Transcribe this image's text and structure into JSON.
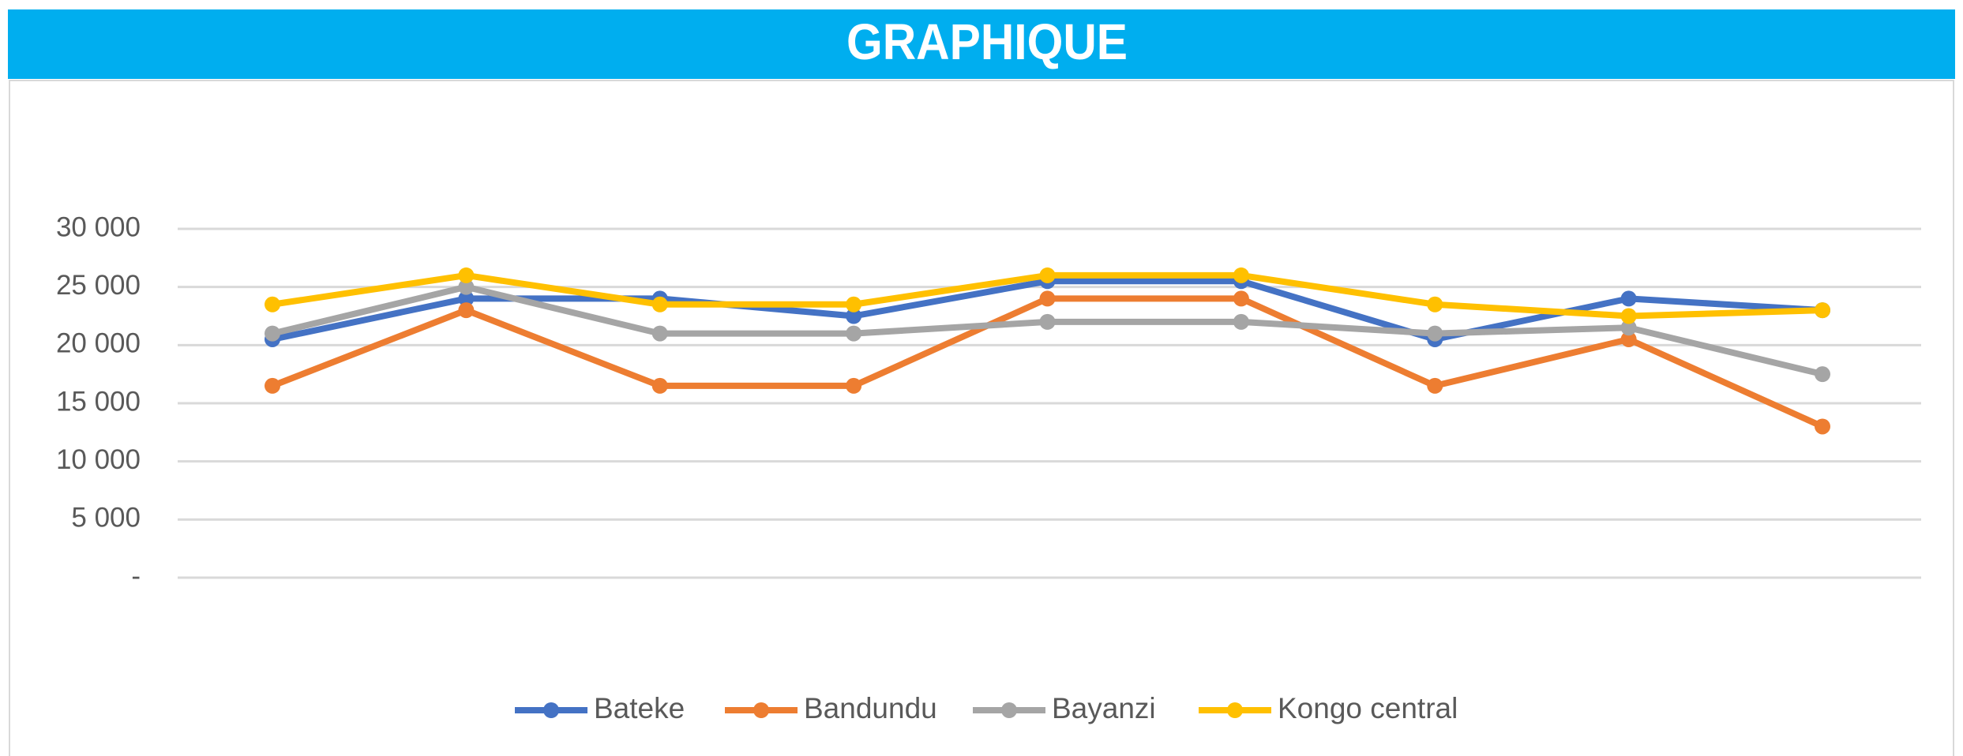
{
  "chart_data": {
    "type": "line",
    "title": "GRAPHIQUE",
    "categories": [
      null,
      null,
      null,
      null,
      null,
      null,
      null,
      null,
      null
    ],
    "series": [
      {
        "name": "Bateke",
        "color": "#4472c4",
        "values": [
          20500,
          24000,
          24000,
          22500,
          25500,
          25500,
          20500,
          24000,
          23000
        ]
      },
      {
        "name": "Bandundu",
        "color": "#ed7d31",
        "values": [
          16500,
          23000,
          16500,
          16500,
          24000,
          24000,
          16500,
          20500,
          13000
        ]
      },
      {
        "name": "Bayanzi",
        "color": "#a5a5a5",
        "values": [
          21000,
          25000,
          21000,
          21000,
          22000,
          22000,
          21000,
          21500,
          17500
        ]
      },
      {
        "name": "Kongo central",
        "color": "#ffc000",
        "values": [
          23500,
          26000,
          23500,
          23500,
          26000,
          26000,
          23500,
          22500,
          23000
        ]
      }
    ],
    "ylim": [
      0,
      30000
    ],
    "yticks": [
      {
        "value": 0,
        "label": "-"
      },
      {
        "value": 5000,
        "label": "5 000"
      },
      {
        "value": 10000,
        "label": "10 000"
      },
      {
        "value": 15000,
        "label": "15 000"
      },
      {
        "value": 20000,
        "label": "20 000"
      },
      {
        "value": 25000,
        "label": "25 000"
      },
      {
        "value": 30000,
        "label": "30 000"
      }
    ],
    "grid": true,
    "legend": "bottom"
  }
}
